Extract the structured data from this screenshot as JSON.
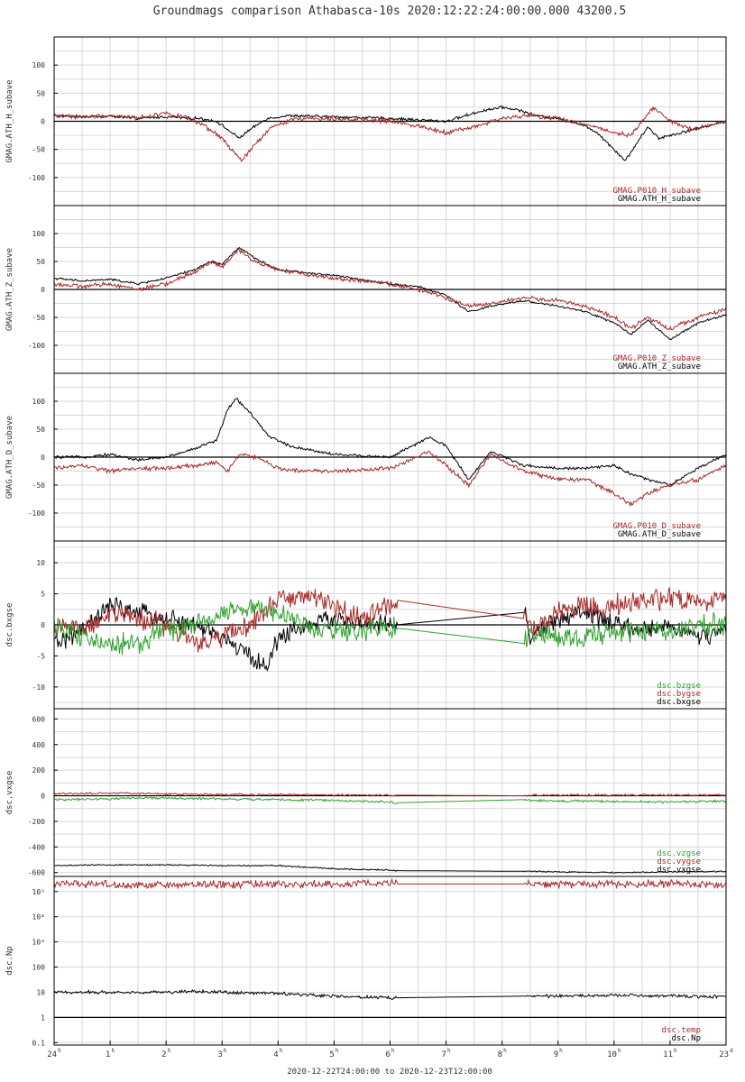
{
  "title": "Groundmags comparison Athabasca-10s 2020:12:22:24:00:00.000 43200.5",
  "time_range_label": "2020-12-22T24:00:00 to 2020-12-23T12:00:00",
  "colors": {
    "black": "#000000",
    "red": "#a82828",
    "green": "#2ca02c"
  },
  "chart_data": [
    {
      "type": "line",
      "ylabel": "GMAG.ATH_H_subave",
      "ylim": [
        -150,
        150
      ],
      "yticks": [
        -100,
        -50,
        0,
        50,
        100
      ],
      "legend": [
        {
          "label": "GMAG.P010_H_subave",
          "color": "#a82828"
        },
        {
          "label": "GMAG.ATH_H_subave",
          "color": "#000000"
        }
      ],
      "series": [
        {
          "name": "GMAG.ATH_H_subave",
          "color": "#000000",
          "noise": 2,
          "x": [
            0,
            0.5,
            1,
            1.5,
            2,
            2.3,
            2.6,
            2.9,
            3.1,
            3.3,
            3.5,
            3.8,
            4.2,
            5,
            6,
            7,
            7.7,
            8,
            8.3,
            8.6,
            9,
            9.4,
            9.7,
            10,
            10.2,
            10.4,
            10.6,
            10.8,
            11.2,
            11.6,
            12
          ],
          "y": [
            10,
            8,
            9,
            5,
            8,
            6,
            5,
            0,
            -15,
            -30,
            -15,
            5,
            10,
            8,
            5,
            0,
            20,
            25,
            20,
            10,
            5,
            -5,
            -20,
            -50,
            -70,
            -40,
            -10,
            -30,
            -20,
            -10,
            0
          ]
        },
        {
          "name": "GMAG.P010_H_subave",
          "color": "#a82828",
          "noise": 3,
          "x": [
            0,
            0.5,
            1,
            1.5,
            2,
            2.4,
            2.7,
            3,
            3.2,
            3.35,
            3.6,
            3.9,
            4.3,
            5,
            6,
            6.6,
            7,
            7.5,
            8,
            8.5,
            9,
            9.5,
            10,
            10.3,
            10.5,
            10.7,
            11,
            11.4,
            12
          ],
          "y": [
            10,
            8,
            10,
            6,
            15,
            5,
            -10,
            -30,
            -55,
            -70,
            -40,
            -10,
            5,
            5,
            0,
            -10,
            -20,
            -10,
            5,
            10,
            5,
            -5,
            -20,
            -25,
            0,
            25,
            0,
            -15,
            0
          ]
        }
      ]
    },
    {
      "type": "line",
      "ylabel": "GMAG.ATH_Z_subave",
      "ylim": [
        -150,
        150
      ],
      "yticks": [
        -100,
        -50,
        0,
        50,
        100
      ],
      "legend": [
        {
          "label": "GMAG.P010_Z_subave",
          "color": "#a82828"
        },
        {
          "label": "GMAG.ATH_Z_subave",
          "color": "#000000"
        }
      ],
      "series": [
        {
          "name": "GMAG.ATH_Z_subave",
          "color": "#000000",
          "noise": 1.5,
          "x": [
            0,
            0.5,
            1,
            1.5,
            2,
            2.5,
            2.8,
            3,
            3.3,
            3.6,
            4,
            5,
            6,
            6.5,
            7,
            7.4,
            7.8,
            8.4,
            9,
            9.5,
            10,
            10.3,
            10.6,
            11,
            11.5,
            12
          ],
          "y": [
            20,
            15,
            18,
            10,
            20,
            35,
            50,
            45,
            75,
            55,
            35,
            25,
            10,
            5,
            -10,
            -40,
            -30,
            -20,
            -30,
            -40,
            -60,
            -80,
            -55,
            -90,
            -60,
            -45
          ]
        },
        {
          "name": "GMAG.P010_Z_subave",
          "color": "#a82828",
          "noise": 3,
          "x": [
            0,
            0.5,
            1,
            1.5,
            2,
            2.5,
            2.8,
            3,
            3.3,
            3.6,
            4,
            5,
            6,
            6.5,
            7,
            7.4,
            7.8,
            8.4,
            9,
            9.5,
            10,
            10.3,
            10.6,
            11,
            11.5,
            12
          ],
          "y": [
            10,
            5,
            10,
            0,
            10,
            30,
            50,
            40,
            70,
            50,
            35,
            20,
            10,
            0,
            -15,
            -30,
            -25,
            -15,
            -20,
            -30,
            -50,
            -70,
            -50,
            -70,
            -50,
            -35
          ]
        }
      ]
    },
    {
      "type": "line",
      "ylabel": "GMAG.ATH_D_subave",
      "ylim": [
        -150,
        150
      ],
      "yticks": [
        -100,
        -50,
        0,
        50,
        100
      ],
      "legend": [
        {
          "label": "GMAG.P010_D_subave",
          "color": "#a82828"
        },
        {
          "label": "GMAG.ATH_D_subave",
          "color": "#000000"
        }
      ],
      "series": [
        {
          "name": "GMAG.ATH_D_subave",
          "color": "#000000",
          "noise": 2,
          "x": [
            0,
            0.5,
            1,
            1.5,
            2,
            2.5,
            2.9,
            3.1,
            3.25,
            3.5,
            3.8,
            4.2,
            5,
            6,
            6.7,
            7,
            7.4,
            7.8,
            8.4,
            9,
            9.5,
            10,
            10.3,
            10.6,
            11,
            11.5,
            12
          ],
          "y": [
            0,
            0,
            5,
            -5,
            0,
            15,
            30,
            85,
            105,
            80,
            40,
            20,
            5,
            0,
            35,
            20,
            -40,
            10,
            -15,
            -20,
            -20,
            -15,
            -30,
            -40,
            -50,
            -20,
            5
          ]
        },
        {
          "name": "GMAG.P010_D_subave",
          "color": "#a82828",
          "noise": 3,
          "x": [
            0,
            0.5,
            1,
            1.5,
            2,
            2.5,
            2.9,
            3.1,
            3.3,
            3.6,
            4,
            4.5,
            5,
            6,
            6.7,
            7,
            7.4,
            7.8,
            8.4,
            9,
            9.5,
            10,
            10.3,
            10.6,
            11,
            11.5,
            12
          ],
          "y": [
            -20,
            -15,
            -25,
            -20,
            -20,
            -15,
            -10,
            -25,
            5,
            0,
            -20,
            -25,
            -25,
            -20,
            10,
            -15,
            -50,
            5,
            -25,
            -40,
            -40,
            -65,
            -85,
            -65,
            -50,
            -40,
            -15
          ]
        }
      ]
    },
    {
      "type": "line",
      "ylabel": "dsc.bxgse",
      "ylim": [
        -13.5,
        13.5
      ],
      "yticks": [
        -10,
        -5,
        0,
        5,
        10
      ],
      "legend": [
        {
          "label": "dsc.bzgse",
          "color": "#2ca02c"
        },
        {
          "label": "dsc.bygse",
          "color": "#a82828"
        },
        {
          "label": "dsc.bxgse",
          "color": "#000000"
        }
      ],
      "series": [
        {
          "name": "dsc.bxgse",
          "color": "#000000",
          "noise": 1.2,
          "x": [
            0,
            0.5,
            1,
            1.5,
            2,
            2.5,
            3,
            3.5,
            3.8,
            4,
            4.5,
            5,
            5.5,
            6.1,
            8.4,
            8.5,
            9,
            9.5,
            10,
            10.5,
            11,
            11.5,
            12
          ],
          "y": [
            -3,
            -1,
            3,
            2,
            1,
            0,
            -2,
            -5,
            -7,
            -2,
            0,
            1,
            0,
            0,
            2,
            -2,
            1,
            2,
            0,
            -1,
            0,
            -2,
            -1
          ]
        },
        {
          "name": "dsc.bygse",
          "color": "#a82828",
          "noise": 1.4,
          "x": [
            0,
            0.5,
            1,
            1.5,
            2,
            2.5,
            3,
            3.5,
            4,
            4.5,
            5,
            5.5,
            6.1,
            8.4,
            8.5,
            9,
            9.5,
            10,
            10.5,
            11,
            11.5,
            12
          ],
          "y": [
            0,
            -1,
            2,
            1,
            0,
            -3,
            -2,
            0,
            4,
            5,
            3,
            1,
            4,
            1,
            -1,
            2,
            3,
            3,
            4,
            4,
            4,
            4.5
          ]
        },
        {
          "name": "dsc.bzgse",
          "color": "#2ca02c",
          "noise": 1.4,
          "x": [
            0,
            0.5,
            1,
            1.5,
            2,
            2.5,
            3,
            3.5,
            4,
            4.5,
            5,
            5.5,
            6.1,
            8.4,
            8.5,
            9,
            9.5,
            10,
            10.5,
            11,
            11.5,
            12
          ],
          "y": [
            0,
            -2,
            -3,
            -3,
            -1,
            0,
            2,
            3,
            2,
            0,
            -1,
            -1,
            -0.5,
            -3,
            -1,
            -2,
            -2,
            -1,
            -1,
            -1,
            0,
            0
          ]
        }
      ]
    },
    {
      "type": "line",
      "ylabel": "dsc.vxgse",
      "ylim": [
        -630,
        680
      ],
      "yticks": [
        -600,
        -400,
        -200,
        0,
        200,
        400,
        600
      ],
      "legend": [
        {
          "label": "dsc.vzgse",
          "color": "#2ca02c"
        },
        {
          "label": "dsc.vygse",
          "color": "#a82828"
        },
        {
          "label": "dsc.vxgse",
          "color": "#000000"
        }
      ],
      "series": [
        {
          "name": "dsc.vxgse",
          "color": "#000000",
          "noise": 4,
          "x": [
            0,
            1,
            2,
            3,
            4,
            5,
            5.5,
            6,
            6.1,
            8.4,
            8.5,
            9,
            10,
            11,
            12
          ],
          "y": [
            -545,
            -540,
            -540,
            -545,
            -545,
            -570,
            -575,
            -580,
            -585,
            -590,
            -590,
            -595,
            -600,
            -595,
            -590
          ]
        },
        {
          "name": "dsc.vygse",
          "color": "#a82828",
          "noise": 6,
          "x": [
            0,
            1,
            2,
            3,
            4,
            5,
            6,
            6.1,
            8.4,
            8.5,
            9,
            10,
            11,
            12
          ],
          "y": [
            15,
            20,
            15,
            10,
            10,
            5,
            5,
            5,
            0,
            5,
            5,
            5,
            5,
            5
          ]
        },
        {
          "name": "dsc.vzgse",
          "color": "#2ca02c",
          "noise": 7,
          "x": [
            0,
            1,
            1.5,
            2,
            3,
            4,
            5,
            6,
            6.1,
            8.4,
            8.5,
            9,
            10,
            11,
            12
          ],
          "y": [
            -30,
            -25,
            -15,
            -20,
            -25,
            -30,
            -35,
            -50,
            -55,
            -30,
            -35,
            -40,
            -45,
            -50,
            -40
          ]
        }
      ]
    },
    {
      "type": "line",
      "scale": "log",
      "ylabel": "dsc.Np",
      "ylim": [
        0.08,
        400000
      ],
      "yticks": [
        0.1,
        1,
        10,
        100,
        1000,
        10000,
        100000
      ],
      "ytick_labels": [
        "0.1",
        "1",
        "10",
        "100",
        "10³",
        "10⁴",
        "10⁵"
      ],
      "legend": [
        {
          "label": "dsc.temp",
          "color": "#a82828"
        },
        {
          "label": "dsc.Np",
          "color": "#000000"
        }
      ],
      "series": [
        {
          "name": "dsc.Np",
          "color": "#000000",
          "noise": 0.05,
          "x": [
            0,
            1,
            2,
            2.5,
            3,
            4,
            5,
            5.5,
            6,
            6.1,
            8.4,
            8.5,
            9,
            10,
            11,
            12
          ],
          "y": [
            10,
            10,
            10,
            11,
            10,
            9,
            7,
            6.5,
            6,
            6,
            7,
            7,
            7,
            7.5,
            7,
            6.5
          ]
        },
        {
          "name": "dsc.temp",
          "color": "#a82828",
          "noise": 0.12,
          "x": [
            0,
            1,
            2,
            3,
            4,
            5,
            6,
            6.1,
            8.4,
            8.5,
            10,
            11,
            12
          ],
          "y": [
            200000,
            200000,
            180000,
            200000,
            200000,
            190000,
            220000,
            200000,
            200000,
            200000,
            200000,
            210000,
            200000
          ]
        }
      ]
    }
  ],
  "x_axis": {
    "min": 0,
    "max": 12,
    "ticks": [
      {
        "v": 0,
        "main": "24",
        "sup": "h"
      },
      {
        "v": 1,
        "main": "1",
        "sup": "h"
      },
      {
        "v": 2,
        "main": "2",
        "sup": "h"
      },
      {
        "v": 3,
        "main": "3",
        "sup": "h"
      },
      {
        "v": 4,
        "main": "4",
        "sup": "h"
      },
      {
        "v": 5,
        "main": "5",
        "sup": "h"
      },
      {
        "v": 6,
        "main": "6",
        "sup": "h"
      },
      {
        "v": 7,
        "main": "7",
        "sup": "h"
      },
      {
        "v": 8,
        "main": "8",
        "sup": "h"
      },
      {
        "v": 9,
        "main": "9",
        "sup": "h"
      },
      {
        "v": 10,
        "main": "10",
        "sup": "h"
      },
      {
        "v": 11,
        "main": "11",
        "sup": "h"
      },
      {
        "v": 12,
        "main": "23",
        "sup": "d"
      }
    ]
  }
}
